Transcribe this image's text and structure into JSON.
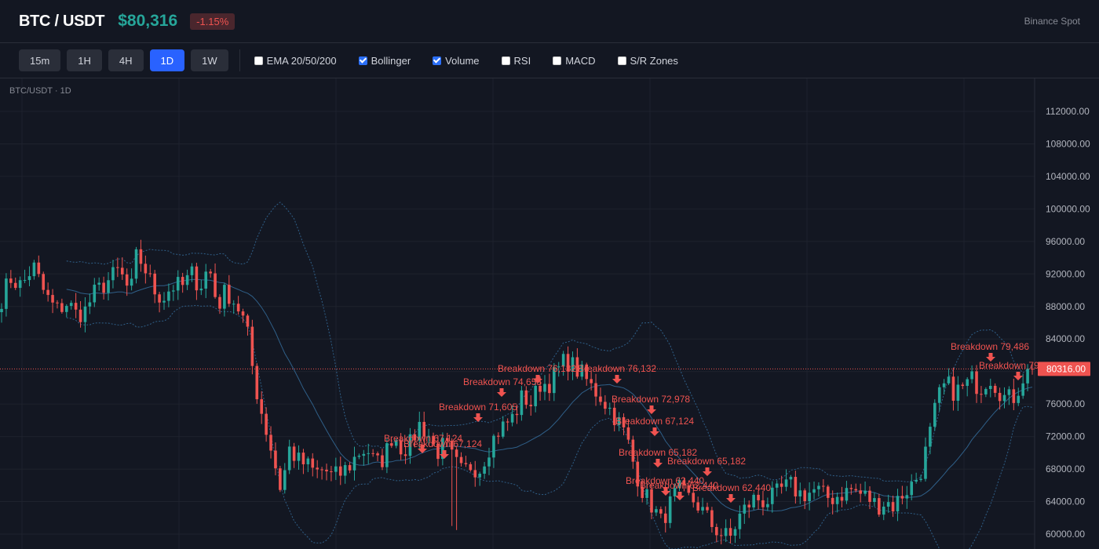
{
  "header": {
    "symbol": "BTC / USDT",
    "price": "$80,316",
    "change": "-1.15%",
    "exchange": "Binance Spot"
  },
  "toolbar": {
    "timeframes": [
      {
        "label": "15m",
        "active": false
      },
      {
        "label": "1H",
        "active": false
      },
      {
        "label": "4H",
        "active": false
      },
      {
        "label": "1D",
        "active": true
      },
      {
        "label": "1W",
        "active": false
      }
    ],
    "indicators": [
      {
        "label": "EMA 20/50/200",
        "checked": false
      },
      {
        "label": "Bollinger",
        "checked": true
      },
      {
        "label": "Volume",
        "checked": true
      },
      {
        "label": "RSI",
        "checked": false
      },
      {
        "label": "MACD",
        "checked": false
      },
      {
        "label": "S/R Zones",
        "checked": false
      }
    ]
  },
  "colors": {
    "up": "#26a69a",
    "down": "#ef5350",
    "active": "#2962ff",
    "bollinger": "#2f5f88",
    "background": "#131722"
  },
  "chart_data": {
    "type": "candlestick",
    "caption": "BTC/USDT · 1D",
    "ylim": [
      58000,
      115000
    ],
    "y_ticks": [
      "112000.00",
      "108000.00",
      "104000.00",
      "100000.00",
      "96000.00",
      "92000.00",
      "88000.00",
      "84000.00",
      "80000.00",
      "76000.00",
      "72000.00",
      "68000.00",
      "64000.00",
      "60000.00"
    ],
    "last_price": 80316,
    "last_price_label": "80316.00",
    "grid": true,
    "close_anchors": [
      [
        0,
        89000
      ],
      [
        6,
        91500
      ],
      [
        14,
        90500
      ],
      [
        22,
        93000
      ],
      [
        30,
        89500
      ],
      [
        38,
        87500
      ],
      [
        46,
        88500
      ],
      [
        52,
        87000
      ],
      [
        58,
        87500
      ],
      [
        64,
        89500
      ],
      [
        70,
        90500
      ],
      [
        76,
        91500
      ],
      [
        82,
        92500
      ],
      [
        86,
        90500
      ],
      [
        90,
        90000
      ],
      [
        94,
        94500
      ],
      [
        100,
        92500
      ],
      [
        106,
        90000
      ],
      [
        112,
        89000
      ],
      [
        118,
        90500
      ],
      [
        126,
        90500
      ],
      [
        132,
        92000
      ],
      [
        138,
        90500
      ],
      [
        144,
        93000
      ],
      [
        150,
        88000
      ],
      [
        156,
        90000
      ],
      [
        164,
        88000
      ],
      [
        170,
        85500
      ],
      [
        176,
        78500
      ],
      [
        182,
        74000
      ],
      [
        188,
        70000
      ],
      [
        194,
        65500
      ],
      [
        200,
        70500
      ],
      [
        206,
        69000
      ],
      [
        212,
        68500
      ],
      [
        218,
        67500
      ],
      [
        224,
        68000
      ],
      [
        230,
        67000
      ],
      [
        236,
        67500
      ],
      [
        242,
        68500
      ],
      [
        248,
        70000
      ],
      [
        254,
        70500
      ],
      [
        260,
        68500
      ],
      [
        266,
        69500
      ],
      [
        272,
        72500
      ],
      [
        278,
        70500
      ],
      [
        284,
        71000
      ],
      [
        290,
        73500
      ],
      [
        296,
        72500
      ],
      [
        302,
        70000
      ],
      [
        308,
        71000
      ],
      [
        314,
        69000
      ],
      [
        320,
        67500
      ],
      [
        326,
        68500
      ],
      [
        332,
        68000
      ],
      [
        338,
        70500
      ],
      [
        344,
        72500
      ],
      [
        350,
        73500
      ],
      [
        356,
        74500
      ],
      [
        362,
        77000
      ],
      [
        368,
        76000
      ],
      [
        374,
        78500
      ],
      [
        380,
        78500
      ],
      [
        386,
        80000
      ],
      [
        392,
        81500
      ],
      [
        398,
        80500
      ],
      [
        404,
        79500
      ],
      [
        410,
        78000
      ],
      [
        416,
        77000
      ],
      [
        422,
        75500
      ],
      [
        428,
        74000
      ],
      [
        434,
        72000
      ],
      [
        440,
        68000
      ],
      [
        446,
        65000
      ],
      [
        452,
        63500
      ],
      [
        458,
        61500
      ],
      [
        464,
        63500
      ],
      [
        470,
        65500
      ],
      [
        476,
        64500
      ],
      [
        482,
        64000
      ],
      [
        488,
        62500
      ],
      [
        494,
        61000
      ],
      [
        500,
        60000
      ],
      [
        506,
        59500
      ],
      [
        512,
        62000
      ],
      [
        518,
        63500
      ],
      [
        524,
        64500
      ],
      [
        530,
        64000
      ],
      [
        536,
        64500
      ],
      [
        542,
        65500
      ],
      [
        548,
        66000
      ],
      [
        554,
        65000
      ],
      [
        560,
        65000
      ],
      [
        566,
        65500
      ],
      [
        572,
        64500
      ],
      [
        578,
        64500
      ],
      [
        584,
        65000
      ],
      [
        590,
        65500
      ],
      [
        596,
        65000
      ],
      [
        602,
        64500
      ],
      [
        608,
        63500
      ],
      [
        614,
        64000
      ],
      [
        620,
        63500
      ],
      [
        626,
        65000
      ],
      [
        632,
        66000
      ],
      [
        638,
        67500
      ],
      [
        644,
        71500
      ],
      [
        650,
        76500
      ],
      [
        656,
        78500
      ],
      [
        662,
        77500
      ],
      [
        668,
        78000
      ],
      [
        674,
        79000
      ],
      [
        680,
        78000
      ],
      [
        686,
        79500
      ],
      [
        692,
        78000
      ],
      [
        698,
        76500
      ],
      [
        704,
        77000
      ],
      [
        710,
        79500
      ],
      [
        716,
        80316
      ]
    ],
    "annotations": [
      {
        "label": "Breakdown 79,486",
        "value": 79486
      },
      {
        "label": "Breakdown 79,486",
        "value": 79486
      },
      {
        "label": "Breakdown 76,132",
        "value": 76132
      },
      {
        "label": "Breakdown 76,132",
        "value": 76132
      },
      {
        "label": "Breakdown 74,655",
        "value": 74655
      },
      {
        "label": "Breakdown 72,978",
        "value": 72978
      },
      {
        "label": "Breakdown 71,605",
        "value": 71605
      },
      {
        "label": "Breakdown 67,124",
        "value": 67124
      },
      {
        "label": "Breakdown 67,124",
        "value": 67124
      },
      {
        "label": "Breakdown 67,124",
        "value": 67124
      },
      {
        "label": "Breakdown 65,182",
        "value": 65182
      },
      {
        "label": "Breakdown 65,182",
        "value": 65182
      },
      {
        "label": "Breakdown 62,440",
        "value": 62440
      },
      {
        "label": "Breakdown 62,440",
        "value": 62440
      },
      {
        "label": "Breakdown 62,440",
        "value": 62440
      }
    ]
  }
}
